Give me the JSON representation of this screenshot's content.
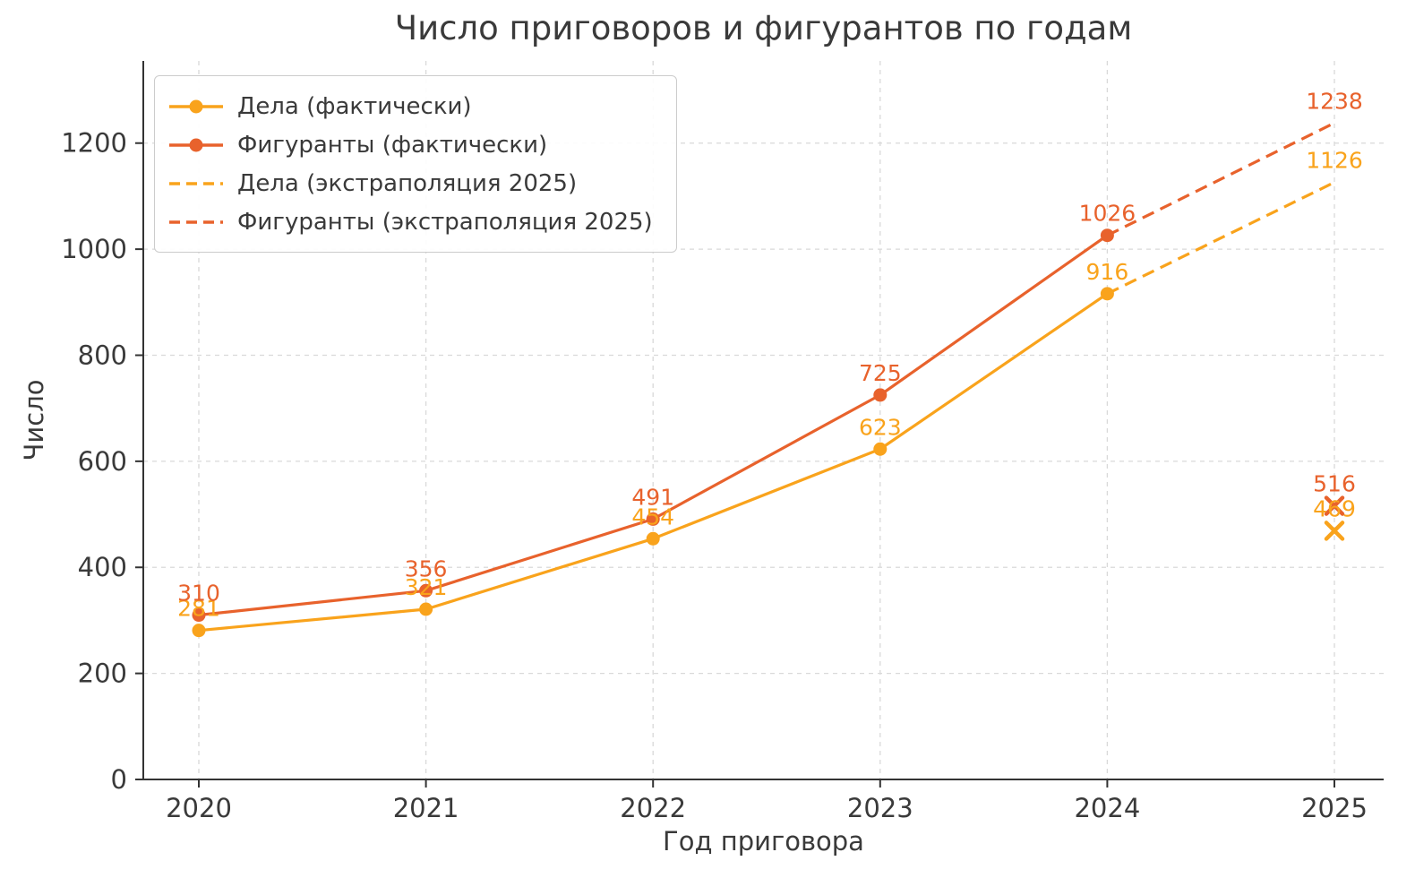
{
  "chart_data": {
    "type": "line",
    "title": "Число приговоров и фигурантов по годам",
    "xlabel": "Год приговора",
    "ylabel": "Число",
    "xticks": [
      2020,
      2021,
      2022,
      2023,
      2024,
      2025
    ],
    "yticks": [
      0,
      200,
      400,
      600,
      800,
      1000,
      1200
    ],
    "ylim": [
      0,
      1355
    ],
    "grid": true,
    "grid_color": "#d9d9d9",
    "text_color": "#3a3a3a",
    "spine_color": "#333333",
    "legend_position": "upper-left",
    "series": [
      {
        "name": "Дела (фактически)",
        "color": "#F9A31C",
        "dash": false,
        "marker": "circle",
        "x": [
          2020,
          2021,
          2022,
          2023,
          2024
        ],
        "values": [
          281,
          321,
          454,
          623,
          916
        ],
        "point_labels": [
          "281",
          "321",
          "454",
          "623",
          "916"
        ]
      },
      {
        "name": "Фигуранты (фактически)",
        "color": "#E8622C",
        "dash": false,
        "marker": "circle",
        "x": [
          2020,
          2021,
          2022,
          2023,
          2024
        ],
        "values": [
          310,
          356,
          491,
          725,
          1026
        ],
        "point_labels": [
          "310",
          "356",
          "491",
          "725",
          "1026"
        ]
      },
      {
        "name": "Дела (экстраполяция 2025)",
        "color": "#F9A31C",
        "dash": true,
        "marker": "none",
        "x": [
          2024,
          2025
        ],
        "values": [
          916,
          1126
        ],
        "point_labels": [
          null,
          "1126"
        ]
      },
      {
        "name": "Фигуранты (экстраполяция 2025)",
        "color": "#E8622C",
        "dash": true,
        "marker": "none",
        "x": [
          2024,
          2025
        ],
        "values": [
          1026,
          1238
        ],
        "point_labels": [
          null,
          "1238"
        ]
      }
    ],
    "extra_points": [
      {
        "x": 2025,
        "value": 516,
        "color": "#E8622C",
        "marker": "x",
        "label": "516"
      },
      {
        "x": 2025,
        "value": 469,
        "color": "#F9A31C",
        "marker": "x",
        "label": "469"
      }
    ]
  }
}
